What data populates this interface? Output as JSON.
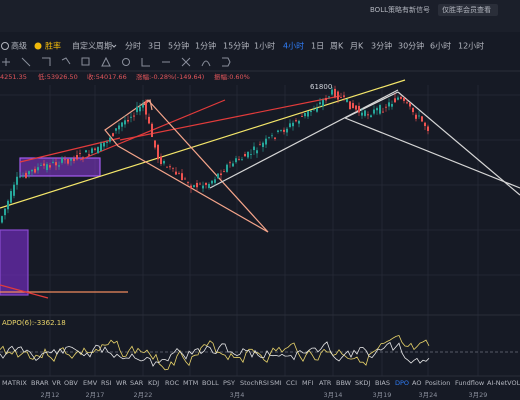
{
  "top_bar": {
    "signal": "BOLL策略有新信号",
    "member": "仅胜率会员查看"
  },
  "toolbar": {
    "advanced": "高级",
    "winrate": "胜率",
    "custom": "自定义周期",
    "periods": [
      "分时",
      "3日",
      "5分钟",
      "1分钟",
      "15分钟",
      "1小时",
      "4小时",
      "1日",
      "周K",
      "月K",
      "3分钟",
      "30分钟",
      "6小时",
      "12小时"
    ],
    "active": "4小时"
  },
  "ohlc": [
    "4251.35",
    "低:53926.50",
    "收:54017.66",
    "涨幅:-0.28%(-149.64)",
    "振幅:0.60%"
  ],
  "annotation": "61800",
  "indicator": {
    "label": "ADPO(6):-3362.18"
  },
  "tabs": [
    "MA",
    "TRIX",
    "BRAR",
    "VR",
    "OBV",
    "EMV",
    "RSI",
    "WR",
    "SAR",
    "KDJ",
    "ROC",
    "MTM",
    "BOLL",
    "PSY",
    "StochRSI",
    "SMI",
    "CCI",
    "MFI",
    "ATR",
    "BBW",
    "SKDJ",
    "BIAS",
    "DPO",
    "AO",
    "Position",
    "Fundflow",
    "AI-NetVOL"
  ],
  "active_tab": "DPO",
  "dates": [
    "2月12",
    "2月17",
    "2月22",
    "3月4",
    "3月14",
    "3月19",
    "3月24",
    "3月29"
  ]
}
